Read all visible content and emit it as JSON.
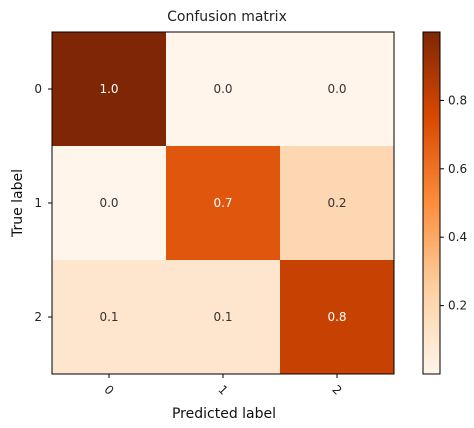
{
  "chart_data": {
    "type": "heatmap",
    "title": "Confusion matrix",
    "xlabel": "Predicted label",
    "ylabel": "True label",
    "x_categories": [
      "0",
      "1",
      "2"
    ],
    "y_categories": [
      "0",
      "1",
      "2"
    ],
    "values": [
      [
        1.0,
        0.0,
        0.0
      ],
      [
        0.0,
        0.7,
        0.2
      ],
      [
        0.1,
        0.1,
        0.8
      ]
    ],
    "cell_labels": [
      [
        "1.0",
        "0.0",
        "0.0"
      ],
      [
        "0.0",
        "0.7",
        "0.2"
      ],
      [
        "0.1",
        "0.1",
        "0.8"
      ]
    ],
    "colormap": "Oranges",
    "colorbar": {
      "range": [
        0.0,
        1.0
      ],
      "ticks": [
        0.2,
        0.4,
        0.6,
        0.8
      ],
      "tick_labels": [
        "0.2",
        "0.4",
        "0.6",
        "0.8"
      ]
    },
    "grid": false
  }
}
